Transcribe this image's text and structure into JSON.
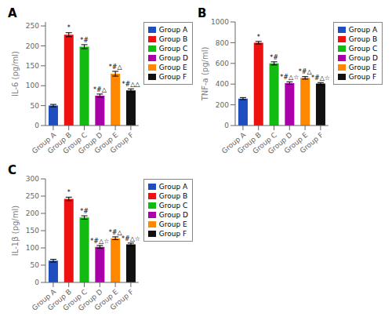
{
  "chart_data": [
    {
      "type": "bar",
      "title": "A",
      "ylabel": "IL-6 (pg/ml)",
      "categories": [
        "Group A",
        "Group B",
        "Group C",
        "Group D",
        "Group E",
        "Group F"
      ],
      "values": [
        50,
        228,
        198,
        75,
        130,
        88
      ],
      "errors": [
        3,
        5,
        5,
        4,
        6,
        4
      ],
      "annotations": [
        null,
        "*",
        "*#",
        "*#△",
        "*#△",
        "*#△△"
      ],
      "colors": [
        "#1F4FBF",
        "#EE1111",
        "#11BB11",
        "#AA00AA",
        "#FF8800",
        "#111111"
      ],
      "ylim": [
        0,
        260
      ],
      "yticks": [
        0,
        50,
        100,
        150,
        200,
        250
      ],
      "legend": "right",
      "grid": false
    },
    {
      "type": "bar",
      "title": "B",
      "ylabel": "TNF-a (pg/ml)",
      "categories": [
        "Group A",
        "Group B",
        "Group C",
        "Group D",
        "Group E",
        "Group F"
      ],
      "values": [
        260,
        800,
        600,
        410,
        460,
        405
      ],
      "errors": [
        10,
        12,
        15,
        12,
        12,
        10
      ],
      "annotations": [
        null,
        "*",
        "*#",
        "*#△☆",
        "*#△",
        "*#△☆"
      ],
      "colors": [
        "#1F4FBF",
        "#EE1111",
        "#11BB11",
        "#AA00AA",
        "#FF8800",
        "#111111"
      ],
      "ylim": [
        0,
        1000
      ],
      "yticks": [
        0,
        200,
        400,
        600,
        800,
        1000
      ],
      "legend": "right",
      "grid": false
    },
    {
      "type": "bar",
      "title": "C",
      "ylabel": "IL-1β (pg/ml)",
      "categories": [
        "Group A",
        "Group B",
        "Group C",
        "Group D",
        "Group E",
        "Group F"
      ],
      "values": [
        63,
        242,
        188,
        103,
        128,
        110
      ],
      "errors": [
        4,
        5,
        5,
        4,
        4,
        4
      ],
      "annotations": [
        null,
        "*",
        "*#",
        "*#△☆",
        "*#△",
        "*#△☆"
      ],
      "colors": [
        "#1F4FBF",
        "#EE1111",
        "#11BB11",
        "#AA00AA",
        "#FF8800",
        "#111111"
      ],
      "ylim": [
        0,
        300
      ],
      "yticks": [
        0,
        50,
        100,
        150,
        200,
        250,
        300
      ],
      "legend": "right",
      "grid": false
    }
  ]
}
